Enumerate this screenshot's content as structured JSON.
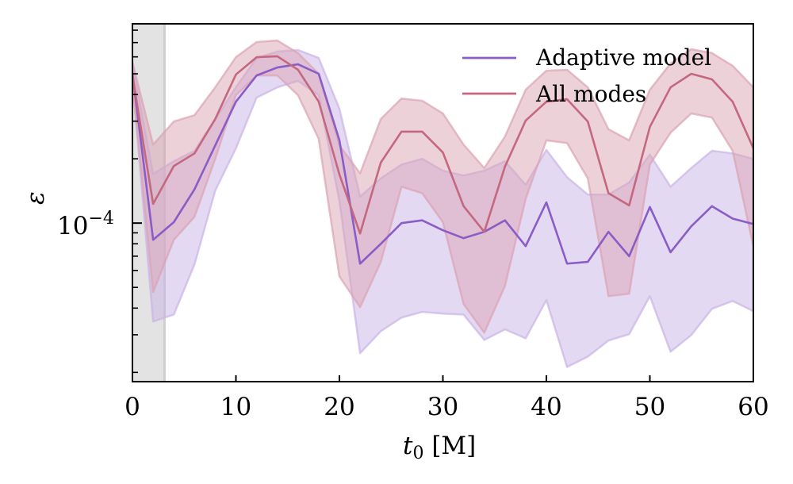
{
  "chart_data": {
    "type": "line",
    "title": "",
    "xlabel": "t_0 [M]",
    "xlabel_parts": {
      "main": "t",
      "sub": "0",
      "unit": " [M]"
    },
    "ylabel": "ε",
    "xlim": [
      0,
      60
    ],
    "ylim": [
      1.81e-05,
      0.000857
    ],
    "yscale": "log",
    "grid": false,
    "legend_position": "top-right",
    "x_ticks": [
      0,
      10,
      20,
      30,
      40,
      50,
      60
    ],
    "x_tick_labels": [
      "0",
      "10",
      "20",
      "30",
      "40",
      "50",
      "60"
    ],
    "y_major_ticks": [
      0.0001
    ],
    "y_tick_labels": [
      {
        "base": "10",
        "exp": "−4"
      }
    ],
    "y_minor_ticks": [
      2e-05,
      3e-05,
      4e-05,
      5e-05,
      6e-05,
      7e-05,
      8e-05,
      9e-05,
      0.0002,
      0.0003,
      0.0004,
      0.0005,
      0.0006,
      0.0007,
      0.0008
    ],
    "shaded_region": {
      "x_start": 0,
      "x_end": 3.1,
      "color": "#e3e3e3",
      "edge_color": "#cfcfcf"
    },
    "x": [
      0,
      2,
      4,
      6,
      8,
      10,
      12,
      14,
      16,
      18,
      20,
      22,
      24,
      26,
      28,
      30,
      32,
      34,
      36,
      38,
      40,
      42,
      44,
      46,
      48,
      50,
      52,
      54,
      56,
      58,
      60
    ],
    "series": [
      {
        "name": "Adaptive model",
        "color": "#8a5cc6",
        "band_color": "#c9b3e6",
        "values": [
          0.000504,
          8.35e-05,
          0.000101,
          0.000144,
          0.000231,
          0.00037,
          0.000491,
          0.000535,
          0.000554,
          0.0005,
          0.000244,
          6.46e-05,
          8e-05,
          0.0001,
          0.000103,
          9.26e-05,
          8.5e-05,
          9.1e-05,
          0.000103,
          7.8e-05,
          0.000125,
          6.46e-05,
          6.58e-05,
          9.1e-05,
          7e-05,
          0.000119,
          7.3e-05,
          9.66e-05,
          0.00012,
          0.000105,
          9.9e-05
        ],
        "upper": [
          0.000559,
          0.00017,
          0.000195,
          0.000218,
          0.000307,
          0.000432,
          0.000593,
          0.000635,
          0.000646,
          0.000593,
          0.000343,
          0.000133,
          0.000162,
          0.000188,
          0.0002,
          0.000176,
          0.000167,
          0.000176,
          0.000195,
          0.000151,
          0.00022,
          0.000164,
          0.000136,
          0.000136,
          0.000155,
          0.000209,
          0.000148,
          0.000181,
          0.000218,
          0.000212,
          0.0002
        ],
        "lower": [
          0.000471,
          3.46e-05,
          3.73e-05,
          6.41e-05,
          0.000142,
          0.000224,
          0.000387,
          0.000432,
          0.000463,
          0.000397,
          0.000127,
          2.46e-05,
          3.12e-05,
          3.61e-05,
          3.84e-05,
          3.77e-05,
          3.73e-05,
          2.84e-05,
          3.18e-05,
          2.89e-05,
          4.36e-05,
          2.12e-05,
          2.37e-05,
          2.82e-05,
          3.02e-05,
          4.55e-05,
          2.5e-05,
          2.99e-05,
          3.97e-05,
          4.32e-05,
          3.87e-05
        ]
      },
      {
        "name": "All modes",
        "color": "#c4687f",
        "band_color": "#dba3b4",
        "values": [
          0.000491,
          0.000123,
          0.000185,
          0.000212,
          0.000307,
          0.000496,
          0.000598,
          0.000604,
          0.000522,
          0.00037,
          0.000169,
          8.94e-05,
          0.000192,
          0.000268,
          0.000268,
          0.000214,
          0.00012,
          9.1e-05,
          0.000184,
          0.000302,
          0.00037,
          0.00038,
          0.000299,
          0.000138,
          0.000121,
          0.000282,
          0.000432,
          0.0005,
          0.000471,
          0.00037,
          0.000224
        ],
        "upper": [
          0.000569,
          0.000233,
          0.000299,
          0.00032,
          0.000432,
          0.000598,
          0.000704,
          0.000716,
          0.000625,
          0.0005,
          0.000231,
          0.000171,
          0.000307,
          0.000383,
          0.000374,
          0.000326,
          0.000233,
          0.000181,
          0.000254,
          0.000421,
          0.000517,
          0.000522,
          0.000432,
          0.000275,
          0.000244,
          0.000421,
          0.000559,
          0.000652,
          0.000625,
          0.000545,
          0.000432
        ],
        "lower": [
          0.000451,
          4.75e-05,
          8.35e-05,
          0.000107,
          0.0002,
          0.000397,
          0.000491,
          0.000491,
          0.000397,
          0.000248,
          5.63e-05,
          4.04e-05,
          6.58e-05,
          0.000148,
          0.000138,
          0.000101,
          4.18e-05,
          3.07e-05,
          5.08e-05,
          0.00013,
          0.000244,
          0.000237,
          0.000162,
          4.55e-05,
          4.67e-05,
          0.000188,
          0.000265,
          0.000326,
          0.000312,
          0.000218,
          7.8e-05
        ]
      }
    ]
  }
}
